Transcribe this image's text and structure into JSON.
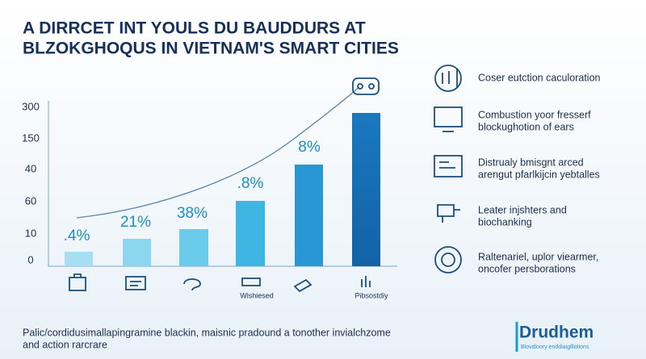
{
  "header": {
    "title": [
      "A DIRRCET INT YOULS DU BAUDDURS AT",
      "BLZOKGHOQUS IN VIETNAM'S SMART CITIES"
    ]
  },
  "chart": {
    "axis_labels": [
      "300",
      "150",
      "40",
      "60",
      "10",
      "0"
    ],
    "bar_labels": [
      ".4%",
      "21%",
      "38%",
      ".8%",
      "8%"
    ],
    "icon_captions": [
      "Wishiesed",
      "Pibsostdiy"
    ]
  },
  "list": [
    [
      "Coser eutction caculoration"
    ],
    [
      "Combustion yoor fresserf",
      "blockughotion of ears"
    ],
    [
      "Distrualy bmisgnt arced",
      "arengut pfarlkijcin yebtalles"
    ],
    [
      "Leater injshters and",
      "biochanking"
    ],
    [
      "Raltenariel, uplor viearmer,",
      "oncofer persborations"
    ]
  ],
  "footer": {
    "text": [
      "Palic/cordidusimallapingramine blackin, maisnic pradound a tonother invialchzome",
      "and action rarcrare"
    ],
    "logo": "Drudhem",
    "logo_sub": "Blovdloory enddiaiglllotions"
  }
}
